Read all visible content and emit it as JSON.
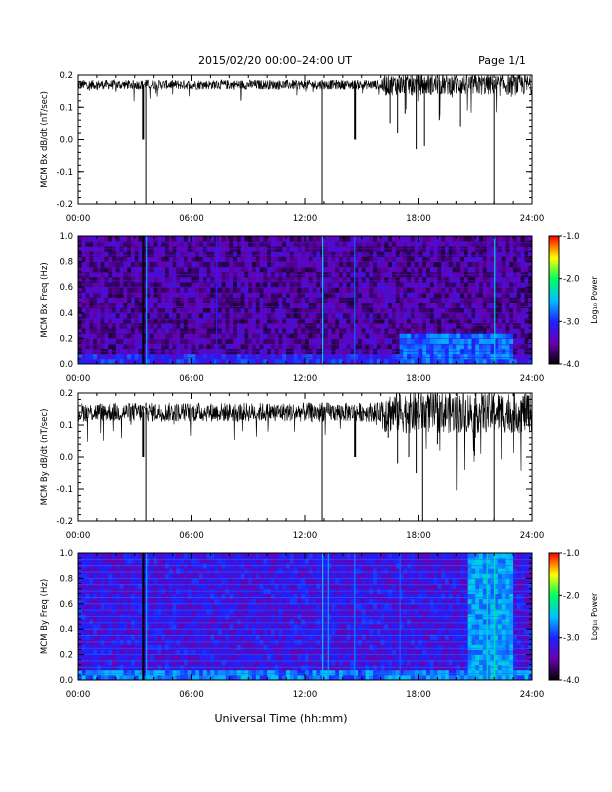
{
  "header": {
    "title": "2015/02/20  00:00–24:00 UT",
    "page_label": "Page 1/1"
  },
  "footer": {
    "xlabel": "Universal Time (hh:mm)"
  },
  "colorbar": {
    "label": "Log₁₀ Power",
    "ticks": [
      "-1.0",
      "-2.0",
      "-3.0",
      "-4.0"
    ],
    "tick_values": [
      -1.0,
      -2.0,
      -3.0,
      -4.0
    ],
    "range": [
      -4.0,
      -1.0
    ],
    "colors": [
      "#000000",
      "#6a00b0",
      "#2020ff",
      "#00c0ff",
      "#00ff60",
      "#ffff00",
      "#ff0000"
    ]
  },
  "chart_data": [
    {
      "type": "line",
      "ylabel": "MCM Bx dB/dt (nT/sec)",
      "xlim": [
        0,
        24
      ],
      "ylim": [
        -0.2,
        0.2
      ],
      "xticks": [
        "00:00",
        "06:00",
        "12:00",
        "18:00",
        "24:00"
      ],
      "yticks": [
        "0.2",
        "0.1",
        "0.0",
        "-0.1",
        "-0.2"
      ],
      "baseline": 0.17,
      "noise": 0.015,
      "color": "#000000",
      "spikes": [
        {
          "t": 3.4,
          "y": 0.0,
          "w": 0.05
        },
        {
          "t": 3.6,
          "y": -0.2
        },
        {
          "t": 12.9,
          "y": -0.2
        },
        {
          "t": 14.6,
          "y": 0.0,
          "w": 0.05
        },
        {
          "t": 16.5,
          "y": 0.05
        },
        {
          "t": 16.9,
          "y": 0.02
        },
        {
          "t": 17.3,
          "y": 0.08
        },
        {
          "t": 17.9,
          "y": -0.03
        },
        {
          "t": 18.3,
          "y": -0.02
        },
        {
          "t": 19.1,
          "y": 0.06
        },
        {
          "t": 20.2,
          "y": 0.04
        },
        {
          "t": 22.0,
          "y": -0.2
        }
      ]
    },
    {
      "type": "heatmap",
      "ylabel": "MCM Bx Freq (Hz)",
      "xlim": [
        0,
        24
      ],
      "ylim": [
        0.0,
        1.0
      ],
      "xticks": [
        "00:00",
        "06:00",
        "12:00",
        "18:00",
        "24:00"
      ],
      "yticks": [
        "1.0",
        "0.8",
        "0.6",
        "0.4",
        "0.2",
        "0.0"
      ],
      "bands": [
        0.05,
        0.1,
        0.15,
        0.2,
        0.25,
        0.3,
        0.35,
        0.4,
        0.45,
        0.5,
        0.55,
        0.6,
        0.65,
        0.7,
        0.75,
        0.8,
        0.85,
        0.9,
        0.95,
        1.0
      ],
      "background_level": -3.55,
      "vertical_streaks": [
        {
          "t": 3.4,
          "level": -4.0,
          "w": 0.12
        },
        {
          "t": 3.6,
          "level": -2.6
        },
        {
          "t": 7.3,
          "level": -3.0
        },
        {
          "t": 12.9,
          "level": -2.4
        },
        {
          "t": 14.6,
          "level": -2.8
        },
        {
          "t": 22.0,
          "level": -2.4
        }
      ],
      "enhanced_region": {
        "t_start": 17.0,
        "t_end": 23.0,
        "f_max": 0.25,
        "level": -2.8
      }
    },
    {
      "type": "line",
      "ylabel": "MCM By dB/dt (nT/sec)",
      "xlim": [
        0,
        24
      ],
      "ylim": [
        -0.2,
        0.2
      ],
      "xticks": [
        "00:00",
        "06:00",
        "12:00",
        "18:00",
        "24:00"
      ],
      "yticks": [
        "0.2",
        "0.1",
        "0.0",
        "-0.1",
        "-0.2"
      ],
      "baseline": 0.14,
      "noise": 0.03,
      "color": "#000000",
      "spikes": [
        {
          "t": 3.4,
          "y": 0.0,
          "w": 0.05
        },
        {
          "t": 3.6,
          "y": -0.2
        },
        {
          "t": 12.9,
          "y": -0.2
        },
        {
          "t": 14.6,
          "y": 0.0,
          "w": 0.05
        },
        {
          "t": 16.4,
          "y": 0.06
        },
        {
          "t": 16.9,
          "y": -0.02
        },
        {
          "t": 17.5,
          "y": 0.0
        },
        {
          "t": 17.9,
          "y": -0.05
        },
        {
          "t": 18.2,
          "y": -0.2
        },
        {
          "t": 19.0,
          "y": 0.04
        },
        {
          "t": 22.0,
          "y": -0.2
        }
      ]
    },
    {
      "type": "heatmap",
      "ylabel": "MCM By Freq (Hz)",
      "xlim": [
        0,
        24
      ],
      "ylim": [
        0.0,
        1.0
      ],
      "xticks": [
        "00:00",
        "06:00",
        "12:00",
        "18:00",
        "24:00"
      ],
      "yticks": [
        "1.0",
        "0.8",
        "0.6",
        "0.4",
        "0.2",
        "0.0"
      ],
      "bands": [
        0.05,
        0.1,
        0.15,
        0.2,
        0.25,
        0.3,
        0.35,
        0.4,
        0.45,
        0.5,
        0.55,
        0.6,
        0.65,
        0.7,
        0.75,
        0.8,
        0.85,
        0.9,
        0.95,
        1.0
      ],
      "background_level": -3.2,
      "vertical_streaks": [
        {
          "t": 3.4,
          "level": -4.0,
          "w": 0.12
        },
        {
          "t": 3.6,
          "level": -2.6
        },
        {
          "t": 12.9,
          "level": -2.5
        },
        {
          "t": 13.2,
          "level": -2.6
        },
        {
          "t": 14.6,
          "level": -2.7
        },
        {
          "t": 17.0,
          "level": -2.8
        },
        {
          "t": 21.6,
          "level": -2.3
        },
        {
          "t": 22.0,
          "level": -2.2
        }
      ],
      "enhanced_region": {
        "t_start": 20.5,
        "t_end": 23.0,
        "f_max": 1.0,
        "level": -2.6
      }
    }
  ]
}
